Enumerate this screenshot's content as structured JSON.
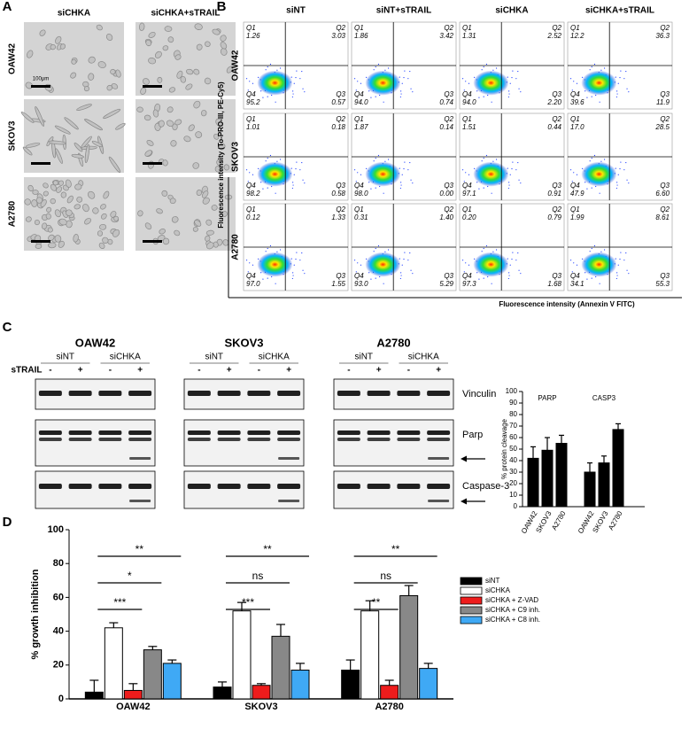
{
  "panel_a": {
    "label": "A",
    "columns": [
      "siCHKA",
      "siCHKA+sTRAIL"
    ],
    "rows": [
      "OAW42",
      "SKOV3",
      "A2780"
    ],
    "scale_bar": "100μm"
  },
  "panel_b": {
    "label": "B",
    "columns": [
      "siNT",
      "siNT+sTRAIL",
      "siCHKA",
      "siCHKA+sTRAIL"
    ],
    "rows": [
      "OAW42",
      "SKOV3",
      "A2780"
    ],
    "y_axis_label": "Fluorescence intensity (To-PRO-III, PE-Cy5)",
    "x_axis_label": "Fluorescence intensity (Annexin V FITC)",
    "quadrant_names": [
      "Q1",
      "Q2",
      "Q3",
      "Q4"
    ],
    "plots": [
      [
        [
          "1.26",
          "3.03",
          "0.57",
          "95.2"
        ],
        [
          "1.86",
          "3.42",
          "0.74",
          "94.0"
        ],
        [
          "1.31",
          "2.52",
          "2.20",
          "94.0"
        ],
        [
          "12.2",
          "36.3",
          "11.9",
          "39.6"
        ]
      ],
      [
        [
          "1.01",
          "0.18",
          "0.58",
          "98.2"
        ],
        [
          "1.87",
          "0.14",
          "0.00",
          "98.0"
        ],
        [
          "1.51",
          "0.44",
          "0.91",
          "97.1"
        ],
        [
          "17.0",
          "28.5",
          "6.60",
          "47.9"
        ]
      ],
      [
        [
          "0.12",
          "1.33",
          "1.55",
          "97.0"
        ],
        [
          "0.31",
          "1.40",
          "5.29",
          "93.0"
        ],
        [
          "0.20",
          "0.79",
          "1.68",
          "97.3"
        ],
        [
          "1.99",
          "8.61",
          "55.3",
          "34.1"
        ]
      ]
    ]
  },
  "panel_c": {
    "label": "C",
    "cell_lines": [
      "OAW42",
      "SKOV3",
      "A2780"
    ],
    "sirna": [
      "siNT",
      "siCHKA"
    ],
    "strail_label": "sTRAIL",
    "strail_states": [
      "-",
      "+"
    ],
    "proteins": [
      "Vinculin",
      "Parp",
      "Caspase-3"
    ]
  },
  "panel_d": {
    "label": "D"
  },
  "chart_data": [
    {
      "type": "bar",
      "y_label": "% protein cleavage",
      "ylim": [
        0,
        100
      ],
      "yticks": [
        0,
        10,
        20,
        30,
        40,
        50,
        60,
        70,
        80,
        90,
        100
      ],
      "categories": [
        "OAW42",
        "SKOV3",
        "A2780"
      ],
      "series": [
        {
          "name": "PARP",
          "color": "#000000",
          "values": [
            42,
            49,
            55
          ],
          "errors": [
            10,
            11,
            7
          ]
        },
        {
          "name": "CASP3",
          "color": "#000000",
          "values": [
            30,
            38,
            67
          ],
          "errors": [
            8,
            6,
            5
          ]
        }
      ]
    },
    {
      "type": "grouped_bar",
      "y_label": "% growth inhibition",
      "ylim": [
        0,
        100
      ],
      "yticks": [
        0,
        20,
        40,
        60,
        80,
        100
      ],
      "categories": [
        "OAW42",
        "SKOV3",
        "A2780"
      ],
      "series": [
        {
          "name": "siNT",
          "color": "#000000",
          "values": [
            4,
            7,
            17
          ],
          "errors": [
            7,
            3,
            6
          ]
        },
        {
          "name": "siCHKA",
          "color": "#ffffff",
          "values": [
            42,
            52,
            52
          ],
          "errors": [
            3,
            5,
            6
          ]
        },
        {
          "name": "siCHKA + Z-VAD",
          "color": "#ee1c1c",
          "values": [
            5,
            8,
            8
          ],
          "errors": [
            4,
            1,
            3
          ]
        },
        {
          "name": "siCHKA + C9 inh.",
          "color": "#888888",
          "values": [
            29,
            37,
            61
          ],
          "errors": [
            2,
            7,
            6
          ]
        },
        {
          "name": "siCHKA + C8 inh.",
          "color": "#3fa9f5",
          "values": [
            21,
            17,
            18
          ],
          "errors": [
            2,
            4,
            3
          ]
        }
      ],
      "significance": [
        [
          "***",
          "*",
          "**"
        ],
        [
          "***",
          "ns",
          "**"
        ],
        [
          "**",
          "ns",
          "**"
        ]
      ]
    }
  ]
}
